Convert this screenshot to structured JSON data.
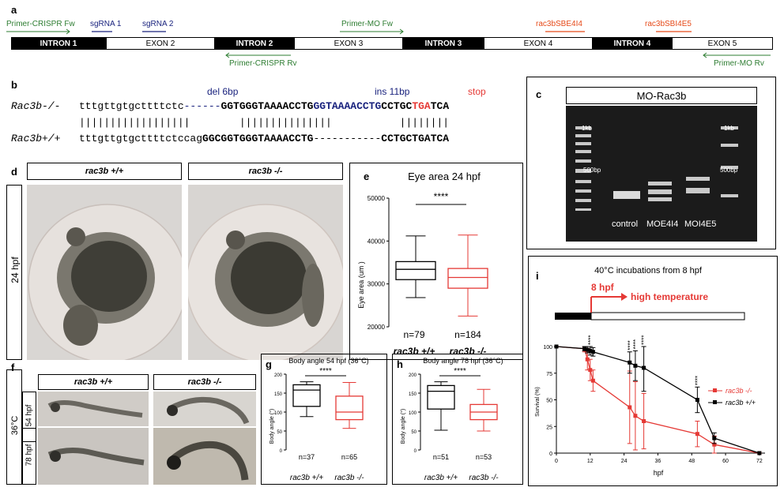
{
  "panel_a": {
    "letter": "a",
    "primer_crispr_fw": "Primer-CRISPR Fw",
    "sgrna1": "sgRNA 1",
    "sgrna2": "sgRNA 2",
    "primer_mo_fw": "Primer-MO Fw",
    "sbe4i4": "rac3bSBE4I4",
    "sbi4e5": "rac3bSBI4E5",
    "primer_crispr_rv": "Primer-CRISPR Rv",
    "primer_mo_rv": "Primer-MO Rv",
    "segments": [
      "INTRON 1",
      "EXON 2",
      "INTRON 2",
      "EXON 3",
      "INTRON 3",
      "EXON 4",
      "INTRON 4",
      "EXON 5"
    ],
    "colors": {
      "green": "#2e7d32",
      "blue": "#1a237e",
      "red": "#e64a19"
    }
  },
  "panel_b": {
    "letter": "b",
    "del": "del 6bp",
    "ins": "ins 11bp",
    "stop": "stop",
    "mut_label": "Rac3b-/-",
    "wt_label": "Rac3b+/+",
    "mut_lower": "tttgttgtgcttttctc",
    "mut_dash": "------",
    "mut_up1": "GGTGGGTAAAACCTG",
    "mut_ins": "GGTAAAACCTG",
    "mut_up2": "CCTGC",
    "mut_tga": "TGA",
    "mut_end": "TCA",
    "bars": "||||||||||||||||||        |||||||||||||||           ||||||||",
    "wt_lower": "tttgttgtgcttttctccag",
    "wt_up1": "GGCGGTGGGTAAAACCTG",
    "wt_dash": "-----------",
    "wt_up2": "CCTGCTGATCA"
  },
  "panel_c": {
    "letter": "c",
    "title": "MO-Rac3b",
    "ladder_1kb": "1kb",
    "ladder_500": "500bp",
    "lanes": [
      "control",
      "MOE4I4",
      "MOI4E5"
    ]
  },
  "panel_d": {
    "letter": "d",
    "wt": "rac3b +/+",
    "mut": "rac3b -/-",
    "time": "24 hpf"
  },
  "panel_e": {
    "letter": "e",
    "title": "Eye area 24 hpf",
    "ylabel": "Eye area (um )",
    "yticks": [
      "50000",
      "40000",
      "30000",
      "20000"
    ],
    "sig": "****",
    "n_wt": "n=79",
    "n_mut": "n=184",
    "cat_wt": "rac3b +/+",
    "cat_mut": "rac3b -/-"
  },
  "panel_f": {
    "letter": "f",
    "wt": "rac3b +/+",
    "mut": "rac3b -/-",
    "temp": "36°C",
    "t1": "54 hpf",
    "t2": "78 hpf"
  },
  "panel_g": {
    "letter": "g",
    "title": "Body angle 54 hpf (36°C)",
    "ylabel": "Body angle (°)",
    "yticks": [
      "200",
      "150",
      "100",
      "50",
      "0"
    ],
    "sig": "****",
    "n_wt": "n=37",
    "n_mut": "n=65",
    "cat_wt": "rac3b +/+",
    "cat_mut": "rac3b -/-"
  },
  "panel_h": {
    "letter": "h",
    "title": "Body angle 78 hpf (36°C)",
    "ylabel": "Body angle (°)",
    "yticks": [
      "200",
      "150",
      "100",
      "50",
      "0"
    ],
    "sig": "****",
    "n_wt": "n=51",
    "n_mut": "n=53",
    "cat_wt": "rac3b +/+",
    "cat_mut": "rac3b -/-"
  },
  "panel_i": {
    "letter": "i",
    "title": "40°C incubations from 8 hpf",
    "hpf8": "8 hpf",
    "hightemp": "high temperature",
    "ylabel": "Survival (%)",
    "xlabel": "hpf",
    "yticks": [
      "100",
      "75",
      "50",
      "25",
      "0"
    ],
    "xticks": [
      "0",
      "12",
      "24",
      "36",
      "48",
      "60",
      "72"
    ],
    "sig": "****",
    "legend_mut": "rac3b -/-",
    "legend_wt": "rac3b +/+"
  },
  "chart_data": [
    {
      "type": "box",
      "title": "Eye area 24 hpf",
      "ylabel": "Eye area (um )",
      "ylim": [
        20000,
        50000
      ],
      "categories": [
        "rac3b +/+",
        "rac3b -/-"
      ],
      "boxes": [
        {
          "min": 26800,
          "q1": 31000,
          "median": 33400,
          "q3": 35200,
          "max": 41200,
          "n": 79
        },
        {
          "min": 22500,
          "q1": 29000,
          "median": 31500,
          "q3": 33600,
          "max": 41400,
          "n": 184
        }
      ],
      "colors": [
        "#000000",
        "#e53935"
      ]
    },
    {
      "type": "box",
      "title": "Body angle 54 hpf (36°C)",
      "ylabel": "Body angle (°)",
      "ylim": [
        0,
        200
      ],
      "categories": [
        "rac3b +/+",
        "rac3b -/-"
      ],
      "boxes": [
        {
          "min": 88,
          "q1": 115,
          "median": 158,
          "q3": 172,
          "max": 180,
          "n": 37
        },
        {
          "min": 57,
          "q1": 80,
          "median": 100,
          "q3": 142,
          "max": 178,
          "n": 65
        }
      ],
      "colors": [
        "#000000",
        "#e53935"
      ]
    },
    {
      "type": "box",
      "title": "Body angle 78 hpf (36°C)",
      "ylabel": "Body angle (°)",
      "ylim": [
        0,
        200
      ],
      "categories": [
        "rac3b +/+",
        "rac3b -/-"
      ],
      "boxes": [
        {
          "min": 52,
          "q1": 108,
          "median": 155,
          "q3": 170,
          "max": 180,
          "n": 51
        },
        {
          "min": 50,
          "q1": 80,
          "median": 100,
          "q3": 120,
          "max": 160,
          "n": 53
        }
      ],
      "colors": [
        "#000000",
        "#e53935"
      ]
    },
    {
      "type": "line",
      "title": "40°C incubations from 8 hpf",
      "xlabel": "hpf",
      "ylabel": "Survival (%)",
      "xlim": [
        0,
        74
      ],
      "ylim": [
        0,
        100
      ],
      "series": [
        {
          "name": "rac3b -/-",
          "color": "#e53935",
          "x": [
            0,
            10,
            11,
            12,
            13,
            26,
            28,
            31,
            50,
            56,
            72
          ],
          "y": [
            100,
            98,
            88,
            78,
            68,
            43,
            35,
            30,
            18,
            8,
            0
          ],
          "err": [
            0,
            3,
            10,
            10,
            10,
            34,
            32,
            26,
            12,
            8,
            0
          ]
        },
        {
          "name": "rac3b +/+",
          "color": "#000000",
          "x": [
            0,
            10,
            11,
            12,
            13,
            26,
            28,
            31,
            50,
            56,
            72
          ],
          "y": [
            100,
            98,
            97,
            96,
            95,
            85,
            82,
            80,
            50,
            14,
            0
          ],
          "err": [
            0,
            2,
            3,
            4,
            4,
            10,
            14,
            22,
            12,
            5,
            0
          ]
        }
      ]
    }
  ]
}
